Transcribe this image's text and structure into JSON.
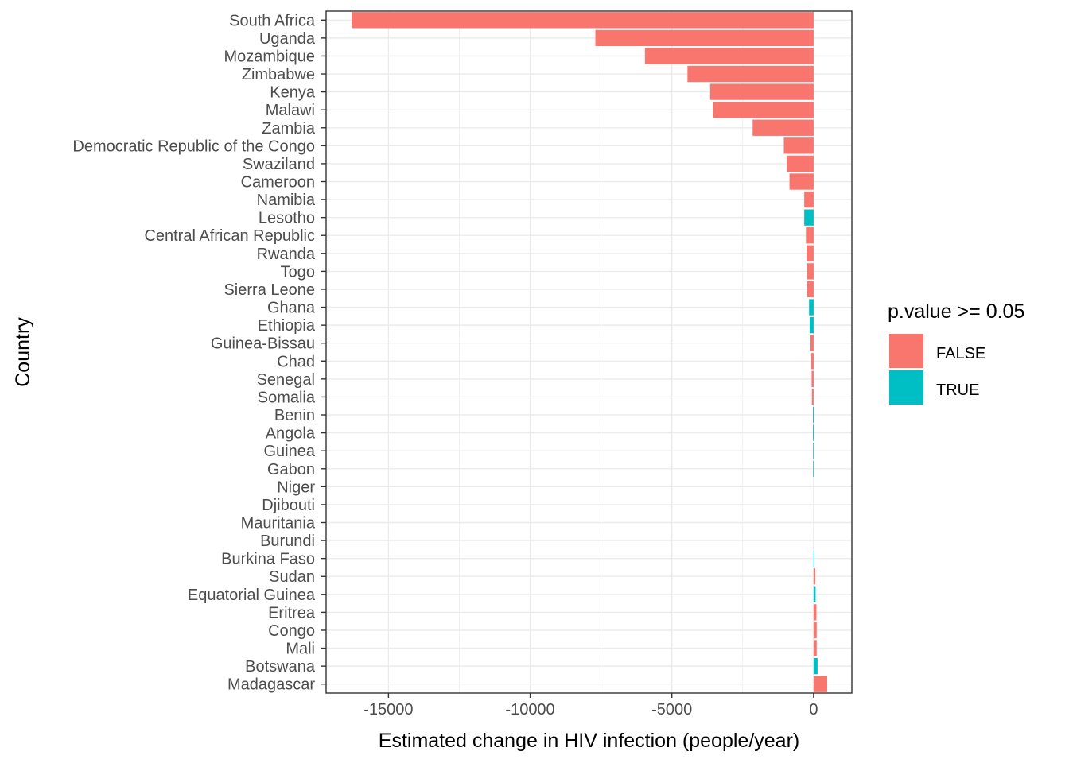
{
  "chart_data": {
    "type": "bar",
    "orientation": "horizontal",
    "xlabel": "Estimated change in HIV infection (people/year)",
    "ylabel": "Country",
    "xlim": [
      -17200,
      1350
    ],
    "x_ticks": [
      -15000,
      -10000,
      -5000,
      0
    ],
    "x_tick_labels": [
      "-15000",
      "-10000",
      "-5000",
      "0"
    ],
    "grid": true,
    "legend": {
      "title": "p.value >= 0.05",
      "placement": "right",
      "entries": [
        {
          "label": "FALSE",
          "color": "#F8766D"
        },
        {
          "label": "TRUE",
          "color": "#00BFC4"
        }
      ]
    },
    "categories": [
      "South Africa",
      "Uganda",
      "Mozambique",
      "Zimbabwe",
      "Kenya",
      "Malawi",
      "Zambia",
      "Democratic Republic of the Congo",
      "Swaziland",
      "Cameroon",
      "Namibia",
      "Lesotho",
      "Central African Republic",
      "Rwanda",
      "Togo",
      "Sierra Leone",
      "Ghana",
      "Ethiopia",
      "Guinea-Bissau",
      "Chad",
      "Senegal",
      "Somalia",
      "Benin",
      "Angola",
      "Guinea",
      "Gabon",
      "Niger",
      "Djibouti",
      "Mauritania",
      "Burundi",
      "Burkina Faso",
      "Sudan",
      "Equatorial Guinea",
      "Eritrea",
      "Congo",
      "Mali",
      "Botswana",
      "Madagascar"
    ],
    "values": [
      -16300,
      -7700,
      -5950,
      -4450,
      -3650,
      -3550,
      -2150,
      -1050,
      -950,
      -850,
      -330,
      -330,
      -270,
      -250,
      -230,
      -230,
      -160,
      -140,
      -110,
      -80,
      -70,
      -60,
      -25,
      -25,
      -20,
      -20,
      0,
      0,
      0,
      0,
      30,
      60,
      70,
      100,
      110,
      110,
      140,
      480
    ],
    "pvalue_ge_005": [
      false,
      false,
      false,
      false,
      false,
      false,
      false,
      false,
      false,
      false,
      false,
      true,
      false,
      false,
      false,
      false,
      true,
      true,
      false,
      false,
      false,
      false,
      true,
      true,
      true,
      true,
      false,
      false,
      false,
      false,
      true,
      false,
      true,
      false,
      false,
      false,
      true,
      false
    ]
  }
}
